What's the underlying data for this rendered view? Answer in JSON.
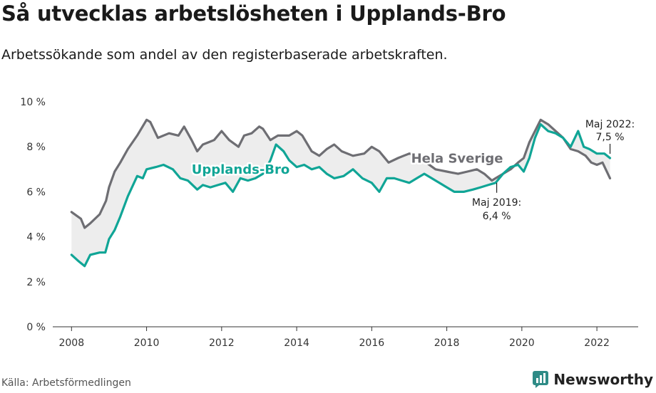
{
  "title": "Så utvecklas arbetslösheten i Upplands-Bro",
  "subtitle": "Arbetssökande som andel av den registerbaserade arbetskraften.",
  "source": "Källa: Arbetsförmedlingen",
  "brand": "Newsworthy",
  "colors": {
    "local": "#10a596",
    "national": "#6e6e73",
    "fill": "#ededed",
    "axis": "#333333",
    "brand": "#2e8b86"
  },
  "chart_data": {
    "type": "line",
    "title": "Så utvecklas arbetslösheten i Upplands-Bro",
    "xlabel": "",
    "ylabel": "",
    "xlim": [
      2007.5,
      2023.1
    ],
    "ylim": [
      0,
      10
    ],
    "grid": false,
    "x_ticks": [
      2008,
      2010,
      2012,
      2014,
      2016,
      2018,
      2020,
      2022
    ],
    "y_ticks": [
      0,
      2,
      4,
      6,
      8,
      10
    ],
    "y_tick_labels": [
      "0 %",
      "2 %",
      "4 %",
      "6 %",
      "8 %",
      "10 %"
    ],
    "series": [
      {
        "name": "Hela Sverige",
        "color": "#6e6e73",
        "x": [
          2008.0,
          2008.25,
          2008.35,
          2008.5,
          2008.75,
          2008.92,
          2009.0,
          2009.15,
          2009.3,
          2009.5,
          2009.75,
          2010.0,
          2010.1,
          2010.3,
          2010.6,
          2010.85,
          2011.0,
          2011.2,
          2011.35,
          2011.5,
          2011.65,
          2011.8,
          2012.0,
          2012.2,
          2012.45,
          2012.6,
          2012.8,
          2013.0,
          2013.1,
          2013.3,
          2013.5,
          2013.8,
          2014.0,
          2014.15,
          2014.4,
          2014.6,
          2014.8,
          2015.0,
          2015.2,
          2015.5,
          2015.8,
          2016.0,
          2016.2,
          2016.45,
          2016.7,
          2016.85,
          2017.0,
          2017.2,
          2017.45,
          2017.7,
          2018.0,
          2018.3,
          2018.55,
          2018.8,
          2019.0,
          2019.2,
          2019.3,
          2019.5,
          2019.7,
          2019.9,
          2020.05,
          2020.2,
          2020.35,
          2020.5,
          2020.7,
          2020.9,
          2021.1,
          2021.3,
          2021.5,
          2021.7,
          2021.85,
          2022.0,
          2022.15,
          2022.35
        ],
        "values": [
          5.1,
          4.8,
          4.4,
          4.6,
          5.0,
          5.6,
          6.2,
          6.9,
          7.3,
          7.9,
          8.5,
          9.2,
          9.1,
          8.4,
          8.6,
          8.5,
          8.9,
          8.3,
          7.8,
          8.1,
          8.2,
          8.3,
          8.7,
          8.3,
          8.0,
          8.5,
          8.6,
          8.9,
          8.8,
          8.3,
          8.5,
          8.5,
          8.7,
          8.5,
          7.8,
          7.6,
          7.9,
          8.1,
          7.8,
          7.6,
          7.7,
          8.0,
          7.8,
          7.3,
          7.5,
          7.6,
          7.7,
          7.6,
          7.3,
          7.0,
          6.9,
          6.8,
          6.9,
          7.0,
          6.8,
          6.5,
          6.6,
          6.8,
          7.0,
          7.3,
          7.5,
          8.2,
          8.7,
          9.2,
          9.0,
          8.7,
          8.4,
          7.9,
          7.8,
          7.6,
          7.3,
          7.2,
          7.3,
          6.6
        ]
      },
      {
        "name": "Upplands-Bro",
        "color": "#10a596",
        "x": [
          2008.0,
          2008.2,
          2008.35,
          2008.5,
          2008.75,
          2008.9,
          2009.0,
          2009.15,
          2009.3,
          2009.5,
          2009.75,
          2009.9,
          2010.0,
          2010.25,
          2010.45,
          2010.7,
          2010.9,
          2011.1,
          2011.35,
          2011.5,
          2011.7,
          2011.9,
          2012.1,
          2012.3,
          2012.5,
          2012.7,
          2012.9,
          2013.1,
          2013.3,
          2013.45,
          2013.65,
          2013.8,
          2014.0,
          2014.2,
          2014.4,
          2014.6,
          2014.8,
          2015.0,
          2015.25,
          2015.5,
          2015.75,
          2016.0,
          2016.2,
          2016.4,
          2016.6,
          2016.8,
          2017.0,
          2017.2,
          2017.4,
          2017.6,
          2017.8,
          2018.0,
          2018.2,
          2018.45,
          2018.7,
          2018.9,
          2019.1,
          2019.3,
          2019.5,
          2019.7,
          2019.9,
          2020.05,
          2020.2,
          2020.35,
          2020.5,
          2020.7,
          2020.9,
          2021.1,
          2021.3,
          2021.5,
          2021.65,
          2021.8,
          2022.0,
          2022.2,
          2022.35
        ],
        "values": [
          3.2,
          2.9,
          2.7,
          3.2,
          3.3,
          3.3,
          3.9,
          4.3,
          4.9,
          5.8,
          6.7,
          6.6,
          7.0,
          7.1,
          7.2,
          7.0,
          6.6,
          6.5,
          6.1,
          6.3,
          6.2,
          6.3,
          6.4,
          6.0,
          6.6,
          6.5,
          6.6,
          6.8,
          7.4,
          8.1,
          7.8,
          7.4,
          7.1,
          7.2,
          7.0,
          7.1,
          6.8,
          6.6,
          6.7,
          7.0,
          6.6,
          6.4,
          6.0,
          6.6,
          6.6,
          6.5,
          6.4,
          6.6,
          6.8,
          6.6,
          6.4,
          6.2,
          6.0,
          6.0,
          6.1,
          6.2,
          6.3,
          6.4,
          6.8,
          7.1,
          7.2,
          6.9,
          7.5,
          8.4,
          9.0,
          8.7,
          8.6,
          8.4,
          8.0,
          8.7,
          8.0,
          7.9,
          7.7,
          7.7,
          7.5
        ]
      }
    ],
    "labels": [
      {
        "series": "Upplands-Bro",
        "text": "Upplands-Bro",
        "x": 2011.2,
        "y": 6.8
      },
      {
        "series": "Hela Sverige",
        "text": "Hela Sverige",
        "x": 2017.05,
        "y": 7.3
      }
    ],
    "annotations": [
      {
        "line1": "Maj 2019:",
        "line2": "6,4 %",
        "x": 2019.33,
        "y": 6.4
      },
      {
        "line1": "Maj 2022:",
        "line2": "7,5 %",
        "x": 2022.35,
        "y": 7.5
      }
    ]
  }
}
